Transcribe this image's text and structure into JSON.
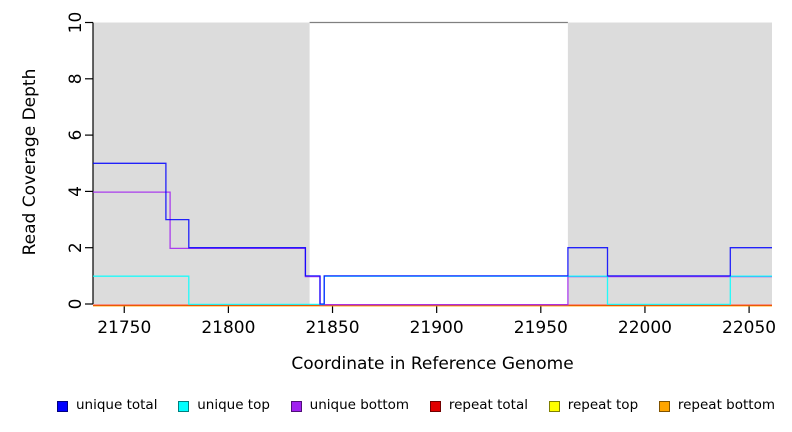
{
  "chart_data": {
    "type": "line",
    "subtype": "step-post",
    "title": "",
    "xlabel": "Coordinate in Reference Genome",
    "ylabel": "Read Coverage Depth",
    "xlim": [
      21735,
      22061
    ],
    "ylim": [
      0,
      10
    ],
    "x_ticks": [
      21750,
      21800,
      21850,
      21900,
      21950,
      22000,
      22050
    ],
    "y_ticks": [
      0,
      2,
      4,
      6,
      8,
      10
    ],
    "grid": "off",
    "legend_position": "bottom",
    "repeat_regions": {
      "fill": "#dcdcdc",
      "ranges": [
        [
          21735,
          21839
        ],
        [
          21963,
          22061
        ]
      ]
    },
    "top_boundary_line": {
      "y": 10,
      "x_range": [
        21839,
        21963
      ],
      "color": "#808080"
    },
    "x_end": 22061,
    "series": [
      {
        "name": "unique total",
        "color": "#0000ff",
        "steps": [
          [
            21735,
            5
          ],
          [
            21770,
            3
          ],
          [
            21781,
            2
          ],
          [
            21837,
            1
          ],
          [
            21844,
            0
          ],
          [
            21846,
            1
          ],
          [
            21963,
            2
          ],
          [
            21982,
            1
          ],
          [
            22041,
            2
          ]
        ]
      },
      {
        "name": "unique top",
        "color": "#00ffff",
        "steps": [
          [
            21735,
            1
          ],
          [
            21781,
            0
          ],
          [
            21846,
            1
          ],
          [
            21982,
            0
          ],
          [
            22041,
            1
          ]
        ]
      },
      {
        "name": "unique bottom",
        "color": "#a020f0",
        "steps": [
          [
            21735,
            4
          ],
          [
            21772,
            2
          ],
          [
            21837,
            1
          ],
          [
            21844,
            0
          ],
          [
            21963,
            1
          ]
        ]
      },
      {
        "name": "repeat total",
        "color": "#e00000",
        "steps": [
          [
            21735,
            0
          ]
        ]
      },
      {
        "name": "repeat top",
        "color": "#ffff00",
        "steps": [
          [
            21735,
            0
          ]
        ]
      },
      {
        "name": "repeat bottom",
        "color": "#ffa500",
        "steps": [
          [
            21735,
            0
          ]
        ]
      }
    ]
  }
}
